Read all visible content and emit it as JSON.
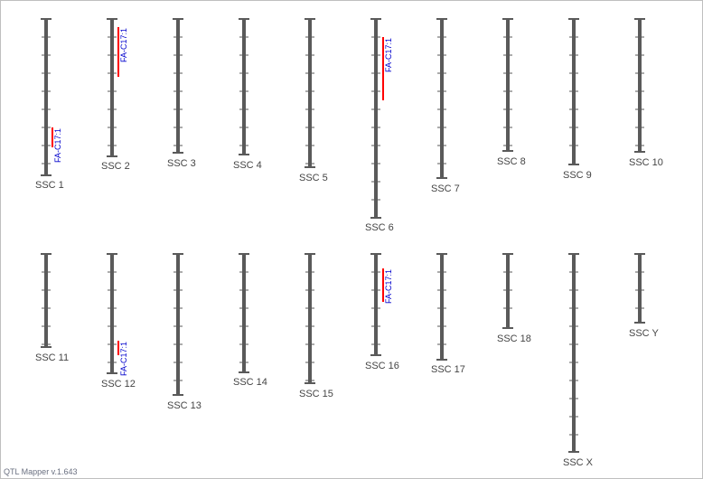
{
  "app": {
    "footer": "QTL Mapper v.1.643"
  },
  "colors": {
    "chromosome": "#5a5a5a",
    "qtl_bar": "#ff0000",
    "qtl_label": "#0000cc",
    "chrom_label": "#444444"
  },
  "chromosomes": [
    {
      "label": "SSC 1",
      "qtls": [
        {
          "label": "FA-C17:1"
        }
      ]
    },
    {
      "label": "SSC 2",
      "qtls": [
        {
          "label": "FA-C17:1"
        }
      ]
    },
    {
      "label": "SSC 3",
      "qtls": []
    },
    {
      "label": "SSC 4",
      "qtls": []
    },
    {
      "label": "SSC 5",
      "qtls": []
    },
    {
      "label": "SSC 6",
      "qtls": [
        {
          "label": "FA-C17:1"
        }
      ]
    },
    {
      "label": "SSC 7",
      "qtls": []
    },
    {
      "label": "SSC 8",
      "qtls": []
    },
    {
      "label": "SSC 9",
      "qtls": []
    },
    {
      "label": "SSC 10",
      "qtls": []
    },
    {
      "label": "SSC 11",
      "qtls": []
    },
    {
      "label": "SSC 12",
      "qtls": [
        {
          "label": "FA-C17:1"
        }
      ]
    },
    {
      "label": "SSC 13",
      "qtls": []
    },
    {
      "label": "SSC 14",
      "qtls": []
    },
    {
      "label": "SSC 15",
      "qtls": []
    },
    {
      "label": "SSC 16",
      "qtls": [
        {
          "label": "FA-C17:1"
        }
      ]
    },
    {
      "label": "SSC 17",
      "qtls": []
    },
    {
      "label": "SSC 18",
      "qtls": []
    },
    {
      "label": "SSC X",
      "qtls": []
    },
    {
      "label": "SSC Y",
      "qtls": []
    }
  ]
}
